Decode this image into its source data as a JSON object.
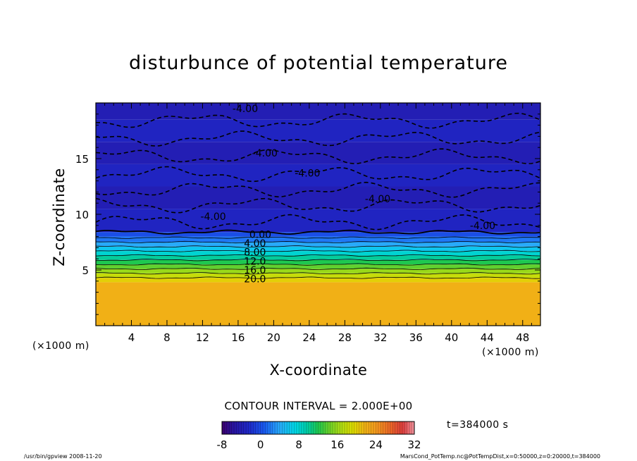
{
  "chart_data": {
    "type": "heatmap",
    "title": "disturbunce of potential temperature",
    "xlabel": "X-coordinate",
    "ylabel": "Z-coordinate",
    "x_unit_label": "(×1000 m)",
    "x_range": [
      0,
      50
    ],
    "y_range": [
      0,
      20
    ],
    "x_ticks": [
      4,
      8,
      12,
      16,
      20,
      24,
      28,
      32,
      36,
      40,
      44,
      48
    ],
    "y_ticks": [
      5,
      10,
      15
    ],
    "contour_interval_text": "CONTOUR INTERVAL = 2.000E+00",
    "colorbar_ticks": [
      -8,
      0,
      8,
      16,
      24,
      32
    ],
    "colorbar_range": [
      -8,
      32
    ],
    "bands": [
      {
        "z0": 0,
        "z1": 3.9,
        "value": 22
      },
      {
        "z0": 3.9,
        "z1": 4.3,
        "value": 20
      },
      {
        "z0": 4.3,
        "z1": 4.7,
        "value": 18
      },
      {
        "z0": 4.7,
        "z1": 5.1,
        "value": 16
      },
      {
        "z0": 5.1,
        "z1": 5.5,
        "value": 14
      },
      {
        "z0": 5.5,
        "z1": 5.9,
        "value": 12
      },
      {
        "z0": 5.9,
        "z1": 6.3,
        "value": 10
      },
      {
        "z0": 6.3,
        "z1": 6.7,
        "value": 8
      },
      {
        "z0": 6.7,
        "z1": 7.1,
        "value": 6
      },
      {
        "z0": 7.1,
        "z1": 7.5,
        "value": 4
      },
      {
        "z0": 7.5,
        "z1": 8.0,
        "value": 2
      },
      {
        "z0": 8.0,
        "z1": 8.4,
        "value": 0
      },
      {
        "z0": 8.4,
        "z1": 10.5,
        "value": -3
      },
      {
        "z0": 10.5,
        "z1": 12.5,
        "value": -4
      },
      {
        "z0": 12.5,
        "z1": 14.5,
        "value": -3
      },
      {
        "z0": 14.5,
        "z1": 16.5,
        "value": -4
      },
      {
        "z0": 16.5,
        "z1": 18.5,
        "value": -3
      },
      {
        "z0": 18.5,
        "z1": 20,
        "value": -4
      }
    ],
    "contour_labels": [
      {
        "text": "-4.00",
        "x": 16.8,
        "z": 19.5
      },
      {
        "text": "-4.00",
        "x": 19.0,
        "z": 15.5
      },
      {
        "text": "-4.00",
        "x": 23.8,
        "z": 13.7
      },
      {
        "text": "-4.00",
        "x": 31.7,
        "z": 11.4
      },
      {
        "text": "-4.00",
        "x": 13.2,
        "z": 9.8
      },
      {
        "text": "-4.00",
        "x": 43.5,
        "z": 9.0
      },
      {
        "text": "0.00",
        "x": 18.5,
        "z": 8.2
      },
      {
        "text": "4.00",
        "x": 17.9,
        "z": 7.4
      },
      {
        "text": "8.00",
        "x": 17.9,
        "z": 6.6
      },
      {
        "text": "12.0",
        "x": 17.9,
        "z": 5.8
      },
      {
        "text": "16.0",
        "x": 17.9,
        "z": 5.0
      },
      {
        "text": "20.0",
        "x": 17.9,
        "z": 4.2
      }
    ]
  },
  "time_label": "t=384000 s",
  "footer": {
    "left": "/usr/bin/gpview   2008-11-20",
    "right": "MarsCond_PotTemp.nc@PotTempDist,x=0:50000,z=0:20000,t=384000"
  }
}
